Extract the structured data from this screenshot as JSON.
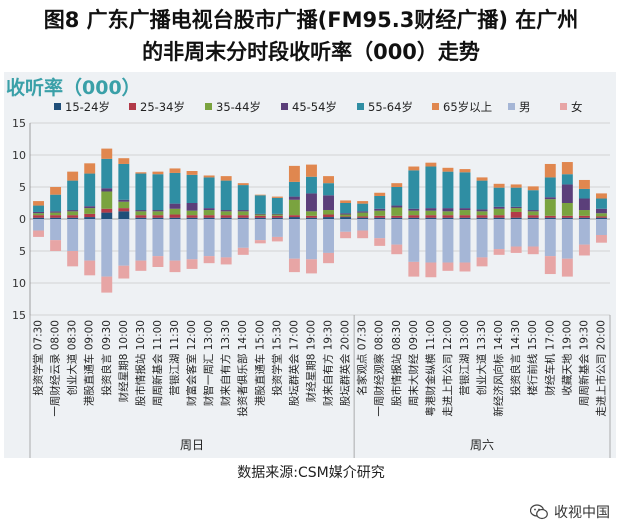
{
  "title_line1": "图8 广东广播电视台股市广播(FM95.3财经广播) 在广州",
  "title_line2": "的非周末分时段收听率（000）走势",
  "source": "数据来源:CSM媒介研究",
  "watermark": "收视中国",
  "chart_data": {
    "type": "bar",
    "subtitle": "收听率（000）",
    "ylim": [
      -15,
      15
    ],
    "yticks": [
      15,
      10,
      5,
      0,
      5,
      10,
      15
    ],
    "legend_position": "top",
    "series": [
      {
        "name": "15-24岁",
        "color": "#1f4e79"
      },
      {
        "name": "25-34岁",
        "color": "#b23a48"
      },
      {
        "name": "35-44岁",
        "color": "#7aa33f"
      },
      {
        "name": "45-54岁",
        "color": "#5b3f7a"
      },
      {
        "name": "55-64岁",
        "color": "#2f8ea3"
      },
      {
        "name": "65岁以上",
        "color": "#e0874f"
      },
      {
        "name": "男",
        "color": "#a5b6d6"
      },
      {
        "name": "女",
        "color": "#e7a5a5"
      }
    ],
    "groups": [
      {
        "name": "周日",
        "categories": [
          {
            "label": "投资学堂 07:30",
            "age": [
              0.2,
              0.4,
              0.3,
              0.2,
              1.0,
              0.7
            ],
            "male": 1.8,
            "female": 1.0
          },
          {
            "label": "一周财经云录 08:00",
            "age": [
              0.2,
              0.4,
              0.4,
              0.2,
              2.6,
              1.2
            ],
            "male": 3.3,
            "female": 1.7
          },
          {
            "label": "创业大道 08:30",
            "age": [
              0.2,
              0.4,
              0.6,
              0.2,
              4.6,
              1.4
            ],
            "male": 5.0,
            "female": 2.4
          },
          {
            "label": "港股直通车 09:00",
            "age": [
              0.3,
              0.5,
              0.9,
              0.3,
              5.1,
              1.6
            ],
            "male": 6.5,
            "female": 2.3
          },
          {
            "label": "投资良言 09:30",
            "age": [
              1.0,
              0.6,
              2.7,
              0.5,
              4.6,
              1.6
            ],
            "male": 9.0,
            "female": 2.5
          },
          {
            "label": "财经星期8 10:00",
            "age": [
              1.2,
              0.5,
              1.0,
              0.3,
              5.6,
              0.9
            ],
            "male": 7.3,
            "female": 2.0
          },
          {
            "label": "股市情报站 10:30",
            "age": [
              0.2,
              0.4,
              0.6,
              0.2,
              5.7,
              0.2
            ],
            "male": 6.5,
            "female": 1.6
          },
          {
            "label": "周周新基会 11:00",
            "age": [
              0.2,
              0.4,
              0.6,
              0.2,
              5.6,
              0.4
            ],
            "male": 5.8,
            "female": 1.7
          },
          {
            "label": "营银江湖 11:30",
            "age": [
              0.2,
              0.5,
              0.9,
              0.8,
              4.8,
              0.7
            ],
            "male": 6.5,
            "female": 1.8
          },
          {
            "label": "财富会客室 12:00",
            "age": [
              0.2,
              0.4,
              0.7,
              1.2,
              4.4,
              0.6
            ],
            "male": 6.3,
            "female": 1.5
          },
          {
            "label": "财智一周汇 13:00",
            "age": [
              0.2,
              0.4,
              0.8,
              0.3,
              4.8,
              0.3
            ],
            "male": 5.8,
            "female": 1.1
          },
          {
            "label": "财来自有方 13:30",
            "age": [
              0.2,
              0.4,
              0.6,
              0.2,
              4.6,
              0.7
            ],
            "male": 6.0,
            "female": 1.1
          },
          {
            "label": "投资者俱乐部 14:00",
            "age": [
              0.2,
              0.4,
              0.6,
              0.2,
              3.9,
              0.3
            ],
            "male": 4.5,
            "female": 1.1
          },
          {
            "label": "港股直通车 15:00",
            "age": [
              0.2,
              0.3,
              0.2,
              0.1,
              2.9,
              0.1
            ],
            "male": 3.3,
            "female": 0.5
          },
          {
            "label": "投资学堂 15:30",
            "age": [
              0.2,
              0.3,
              0.2,
              0.1,
              2.5,
              0.2
            ],
            "male": 2.8,
            "female": 0.7
          },
          {
            "label": "股坛群英会 17:00",
            "age": [
              0.3,
              0.3,
              2.4,
              0.5,
              2.3,
              2.5
            ],
            "male": 6.2,
            "female": 2.1
          },
          {
            "label": "财经星期8 19:00",
            "age": [
              0.2,
              0.3,
              0.7,
              2.8,
              2.6,
              1.9
            ],
            "male": 6.3,
            "female": 2.2
          },
          {
            "label": "财来自有方 19:30",
            "age": [
              0.3,
              0.4,
              0.7,
              2.3,
              1.9,
              1.1
            ],
            "male": 5.3,
            "female": 1.6
          },
          {
            "label": "股坛群英会 20:00",
            "age": [
              0.3,
              0.1,
              0.3,
              0.2,
              1.6,
              0.4
            ],
            "male": 2.0,
            "female": 1.0
          }
        ]
      },
      {
        "name": "周六",
        "categories": [
          {
            "label": "名家观点 07:30",
            "age": [
              0.2,
              0.2,
              0.6,
              0.2,
              1.2,
              0.4
            ],
            "male": 1.8,
            "female": 1.2
          },
          {
            "label": "一周财经观察 08:00",
            "age": [
              0.2,
              0.3,
              0.8,
              0.3,
              2.0,
              0.5
            ],
            "male": 3.0,
            "female": 1.2
          },
          {
            "label": "股市情报站 08:30",
            "age": [
              0.2,
              0.3,
              1.3,
              0.3,
              2.9,
              0.6
            ],
            "male": 4.0,
            "female": 1.5
          },
          {
            "label": "周末大财经 09:00",
            "age": [
              0.2,
              0.4,
              0.7,
              0.3,
              6.0,
              0.6
            ],
            "male": 6.7,
            "female": 2.3
          },
          {
            "label": "粤港财金纵横 11:00",
            "age": [
              0.2,
              0.4,
              0.7,
              0.4,
              6.5,
              0.6
            ],
            "male": 6.8,
            "female": 2.3
          },
          {
            "label": "走进上市公司 12:00",
            "age": [
              0.2,
              0.4,
              0.6,
              0.5,
              5.7,
              0.6
            ],
            "male": 6.8,
            "female": 1.3
          },
          {
            "label": "营银江湖 13:00",
            "age": [
              0.2,
              0.4,
              0.8,
              0.3,
              5.6,
              0.5
            ],
            "male": 6.8,
            "female": 1.4
          },
          {
            "label": "创业大道 13:30",
            "age": [
              0.2,
              0.4,
              0.6,
              0.3,
              4.5,
              0.5
            ],
            "male": 6.0,
            "female": 1.4
          },
          {
            "label": "新经济风向标 14:00",
            "age": [
              0.2,
              0.4,
              1.0,
              0.3,
              3.0,
              0.6
            ],
            "male": 4.7,
            "female": 0.9
          },
          {
            "label": "投资良言 14:30",
            "age": [
              0.2,
              0.9,
              0.6,
              0.2,
              3.0,
              0.5
            ],
            "male": 4.3,
            "female": 1.0
          },
          {
            "label": "楼行前线 15:00",
            "age": [
              0.2,
              0.4,
              0.6,
              0.2,
              3.1,
              0.6
            ],
            "male": 4.3,
            "female": 1.2
          },
          {
            "label": "财经车机 17:00",
            "age": [
              0.2,
              0.3,
              2.6,
              0.3,
              3.1,
              2.1
            ],
            "male": 5.8,
            "female": 2.8
          },
          {
            "label": "收藏天地 19:00",
            "age": [
              0.2,
              0.3,
              2.0,
              2.9,
              1.6,
              1.9
            ],
            "male": 6.2,
            "female": 2.8
          },
          {
            "label": "周周新基会 19:30",
            "age": [
              0.2,
              0.3,
              0.9,
              1.8,
              1.5,
              1.4
            ],
            "male": 4.0,
            "female": 1.7
          },
          {
            "label": "走进上市公司 20:00",
            "age": [
              0.2,
              0.2,
              0.5,
              0.7,
              1.6,
              0.8
            ],
            "male": 2.5,
            "female": 1.2
          }
        ]
      }
    ]
  }
}
